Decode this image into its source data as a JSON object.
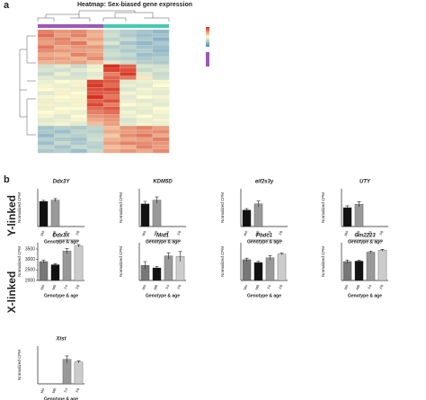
{
  "panels": [
    "a",
    "b"
  ],
  "groups": [
    "Y-linked",
    "X-linked"
  ],
  "chart_data": [
    {
      "type": "heatmap",
      "title": "Heatmap: Sex-biased gene expression",
      "zlim": [
        -2,
        2
      ],
      "colorscale": [
        "#4a8cc8",
        "#fdfbd0",
        "#d7301f"
      ],
      "values": [
        [
          1.2,
          1.0,
          1.1,
          0.8,
          -0.6,
          -0.8,
          -1.0,
          -1.2
        ],
        [
          1.4,
          0.9,
          1.2,
          0.7,
          -0.5,
          -0.9,
          -1.1,
          -1.0
        ],
        [
          1.0,
          1.2,
          0.8,
          0.9,
          -0.7,
          -0.6,
          -0.9,
          -1.3
        ],
        [
          0.9,
          1.1,
          1.3,
          0.6,
          -0.4,
          -1.0,
          -1.2,
          -0.9
        ],
        [
          1.3,
          0.8,
          1.0,
          1.0,
          -0.8,
          -0.7,
          -1.0,
          -1.1
        ],
        [
          1.1,
          1.0,
          0.9,
          0.8,
          -0.6,
          -0.9,
          -0.8,
          -1.2
        ],
        [
          0.8,
          0.7,
          1.2,
          0.9,
          -0.5,
          -0.6,
          -1.1,
          -1.0
        ],
        [
          1.0,
          0.9,
          0.7,
          1.1,
          -0.7,
          -0.8,
          -0.9,
          -0.8
        ],
        [
          0.7,
          0.8,
          0.9,
          0.6,
          -0.3,
          -0.5,
          -0.8,
          -0.9
        ],
        [
          -0.5,
          -0.3,
          -0.6,
          -0.2,
          2.0,
          1.5,
          -0.4,
          -0.5
        ],
        [
          -0.4,
          -0.5,
          -0.3,
          -0.1,
          1.8,
          1.7,
          -0.6,
          -0.4
        ],
        [
          -0.6,
          -0.2,
          -0.5,
          -0.3,
          1.2,
          1.9,
          -0.3,
          -0.6
        ],
        [
          -0.3,
          -0.4,
          -0.4,
          -0.2,
          1.5,
          1.3,
          0.2,
          -0.5
        ],
        [
          -0.2,
          0,
          -0.1,
          1.8,
          1.6,
          -0.3,
          -0.2,
          -0.1
        ],
        [
          -0.1,
          -0.2,
          0.1,
          1.9,
          1.4,
          -0.2,
          -0.3,
          0
        ],
        [
          0,
          -0.1,
          -0.2,
          1.7,
          1.8,
          -0.4,
          -0.1,
          -0.2
        ],
        [
          -0.3,
          0.1,
          0,
          1.6,
          1.5,
          -0.1,
          -0.2,
          -0.3
        ],
        [
          -0.1,
          0,
          -0.1,
          2.0,
          1.3,
          -0.3,
          0,
          -0.1
        ],
        [
          -0.2,
          -0.1,
          0.1,
          1.5,
          1.7,
          -0.2,
          -0.3,
          -0.2
        ],
        [
          0.1,
          -0.2,
          -0.1,
          1.8,
          1.2,
          0,
          -0.1,
          -0.3
        ],
        [
          -0.2,
          0,
          0,
          1.4,
          1.6,
          -0.3,
          -0.2,
          0
        ],
        [
          0,
          -0.1,
          -0.2,
          1.2,
          1.4,
          -0.1,
          -0.3,
          -0.1
        ],
        [
          -0.1,
          -0.3,
          0,
          1.0,
          1.1,
          -0.2,
          0,
          -0.2
        ],
        [
          -0.3,
          -0.2,
          -0.1,
          0.8,
          1.0,
          -0.4,
          -0.2,
          -0.1
        ],
        [
          -0.2,
          -0.1,
          -0.3,
          0.6,
          0.9,
          -0.3,
          -0.1,
          -0.2
        ],
        [
          -1.0,
          -0.8,
          -0.9,
          -0.7,
          0.6,
          1.0,
          1.2,
          0.9
        ],
        [
          -0.9,
          -1.1,
          -0.7,
          -0.8,
          0.8,
          0.9,
          1.0,
          1.1
        ],
        [
          -1.2,
          -0.7,
          -0.8,
          -0.6,
          0.5,
          1.1,
          1.3,
          0.8
        ],
        [
          -0.8,
          -0.9,
          -1.0,
          -0.5,
          0.7,
          0.8,
          0.9,
          1.2
        ],
        [
          -1.1,
          -0.6,
          -0.9,
          -0.7,
          0.9,
          1.2,
          1.1,
          1.0
        ],
        [
          -0.7,
          -1.0,
          -0.6,
          -0.8,
          0.6,
          0.7,
          1.2,
          0.9
        ],
        [
          -0.9,
          -0.8,
          -1.1,
          -0.6,
          0.8,
          1.0,
          0.8,
          1.1
        ]
      ]
    },
    {
      "type": "bar",
      "title": "Ddx3Y",
      "categories": [
        "M4",
        "M8",
        "F4",
        "F8"
      ],
      "values": [
        1000,
        1050,
        null,
        null
      ],
      "errors": [
        40,
        60,
        null,
        null
      ],
      "ylim": [
        0,
        1500
      ],
      "y_label": "Normalized CPM",
      "x_label": "Genotype & age",
      "colors": [
        "#111111",
        "#999999",
        "#999999",
        "#cccccc"
      ]
    },
    {
      "type": "bar",
      "title": "KDM5D",
      "categories": [
        "M4",
        "M8",
        "F4",
        "F8"
      ],
      "values": [
        180,
        210,
        null,
        null
      ],
      "errors": [
        20,
        25,
        null,
        null
      ],
      "ylim": [
        0,
        300
      ],
      "y_label": "Normalized CPM",
      "x_label": "Genotype & age",
      "colors": [
        "#111111",
        "#999999",
        "#999999",
        "#cccccc"
      ]
    },
    {
      "type": "bar",
      "title": "eif2s3y",
      "categories": [
        "M4",
        "M8",
        "F4",
        "F8"
      ],
      "values": [
        35,
        48,
        null,
        null
      ],
      "errors": [
        3,
        6,
        null,
        null
      ],
      "ylim": [
        0,
        80
      ],
      "y_label": "Normalized CPM",
      "x_label": "Genotype & age",
      "colors": [
        "#111111",
        "#999999",
        "#999999",
        "#cccccc"
      ]
    },
    {
      "type": "bar",
      "title": "UTY",
      "categories": [
        "M4",
        "M8",
        "F4",
        "F8"
      ],
      "values": [
        100,
        118,
        null,
        null
      ],
      "errors": [
        10,
        14,
        null,
        null
      ],
      "ylim": [
        0,
        200
      ],
      "y_label": "Normalized CPM",
      "x_label": "Genotype & age",
      "colors": [
        "#111111",
        "#999999",
        "#999999",
        "#cccccc"
      ]
    },
    {
      "type": "bar",
      "title": "Ddx3X",
      "categories": [
        "M4",
        "M8",
        "F4",
        "F8"
      ],
      "values": [
        2900,
        2750,
        3400,
        3650
      ],
      "errors": [
        60,
        50,
        120,
        60
      ],
      "ylim": [
        2000,
        3800
      ],
      "yticks": [
        2000,
        2500,
        3000,
        3500
      ],
      "y_label": "Normalized CPM",
      "x_label": "Genotype & age",
      "colors": [
        "#777777",
        "#111111",
        "#999999",
        "#cccccc"
      ]
    },
    {
      "type": "bar",
      "title": "Mid1",
      "categories": [
        "M4",
        "M8",
        "F4",
        "F8"
      ],
      "values": [
        120,
        100,
        195,
        190
      ],
      "errors": [
        30,
        10,
        25,
        40
      ],
      "ylim": [
        0,
        300
      ],
      "y_label": "Normalized CPM",
      "x_label": "Genotype & age",
      "colors": [
        "#777777",
        "#111111",
        "#999999",
        "#cccccc"
      ]
    },
    {
      "type": "bar",
      "title": "Pbdc1",
      "categories": [
        "M4",
        "M8",
        "F4",
        "F8"
      ],
      "values": [
        110,
        95,
        120,
        140
      ],
      "errors": [
        8,
        6,
        12,
        5
      ],
      "ylim": [
        0,
        200
      ],
      "y_label": "Normalized CPM",
      "x_label": "Genotype & age",
      "colors": [
        "#777777",
        "#111111",
        "#999999",
        "#cccccc"
      ]
    },
    {
      "type": "bar",
      "title": "Gm2223",
      "categories": [
        "M4",
        "M8",
        "F4",
        "F8"
      ],
      "values": [
        200,
        205,
        300,
        320
      ],
      "errors": [
        15,
        10,
        12,
        10
      ],
      "ylim": [
        0,
        400
      ],
      "y_label": "Normalized CPM",
      "x_label": "Genotype & age",
      "colors": [
        "#777777",
        "#111111",
        "#999999",
        "#cccccc"
      ]
    },
    {
      "type": "bar",
      "title": "Xist",
      "categories": [
        "M4",
        "M8",
        "F4",
        "F8"
      ],
      "values": [
        null,
        null,
        650,
        580
      ],
      "errors": [
        null,
        null,
        90,
        25
      ],
      "ylim": [
        0,
        1000
      ],
      "y_label": "Normalized CPM",
      "x_label": "Genotype & age",
      "colors": [
        "#777777",
        "#111111",
        "#999999",
        "#cccccc"
      ]
    }
  ]
}
